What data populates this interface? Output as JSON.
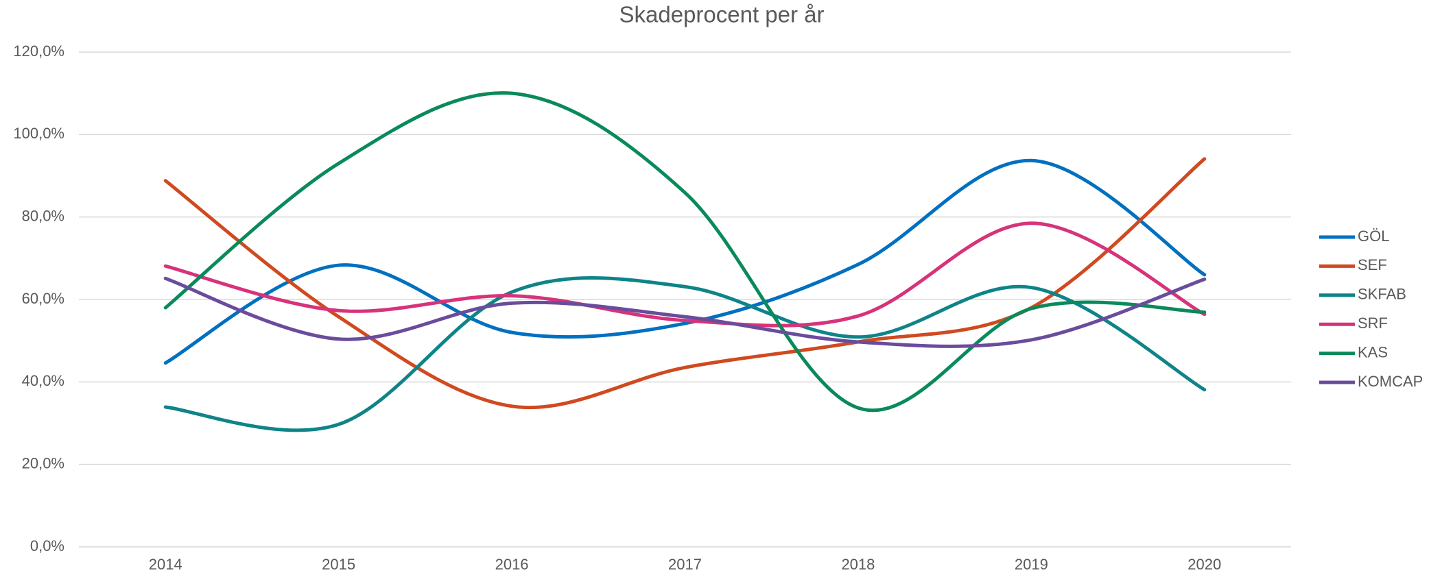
{
  "chart_data": {
    "type": "line",
    "title": "Skadeprocent per år",
    "categories": [
      "2014",
      "2015",
      "2016",
      "2017",
      "2018",
      "2019",
      "2020"
    ],
    "series": [
      {
        "name": "GÖL",
        "color": "#0070c0",
        "values": [
          44.6,
          68.3,
          52.0,
          54.2,
          68.5,
          93.7,
          66.0
        ]
      },
      {
        "name": "SEF",
        "color": "#d04a20",
        "values": [
          88.8,
          55.8,
          34.1,
          43.5,
          49.7,
          58.0,
          94.1
        ]
      },
      {
        "name": "SKFAB",
        "color": "#0f8488",
        "values": [
          33.9,
          29.7,
          61.8,
          63.1,
          50.9,
          62.9,
          38.1
        ]
      },
      {
        "name": "SRF",
        "color": "#d6337a",
        "values": [
          68.1,
          57.3,
          60.9,
          54.9,
          56.0,
          78.5,
          56.4
        ]
      },
      {
        "name": "KAS",
        "color": "#0a8a5a",
        "values": [
          58.0,
          93.0,
          110.0,
          85.9,
          33.7,
          57.8,
          56.9
        ]
      },
      {
        "name": "KOMCAP",
        "color": "#6a4c9c",
        "values": [
          65.1,
          50.4,
          59.1,
          55.8,
          49.7,
          50.2,
          64.9
        ]
      }
    ],
    "ylim": [
      0,
      120
    ],
    "yticks": [
      {
        "value": 0,
        "label": "0,0%"
      },
      {
        "value": 20,
        "label": "20,0%"
      },
      {
        "value": 40,
        "label": "40,0%"
      },
      {
        "value": 60,
        "label": "60,0%"
      },
      {
        "value": 80,
        "label": "80,0%"
      },
      {
        "value": 100,
        "label": "100,0%"
      },
      {
        "value": 120,
        "label": "120,0%"
      }
    ],
    "grid": true,
    "smooth": true,
    "legend": "right"
  }
}
